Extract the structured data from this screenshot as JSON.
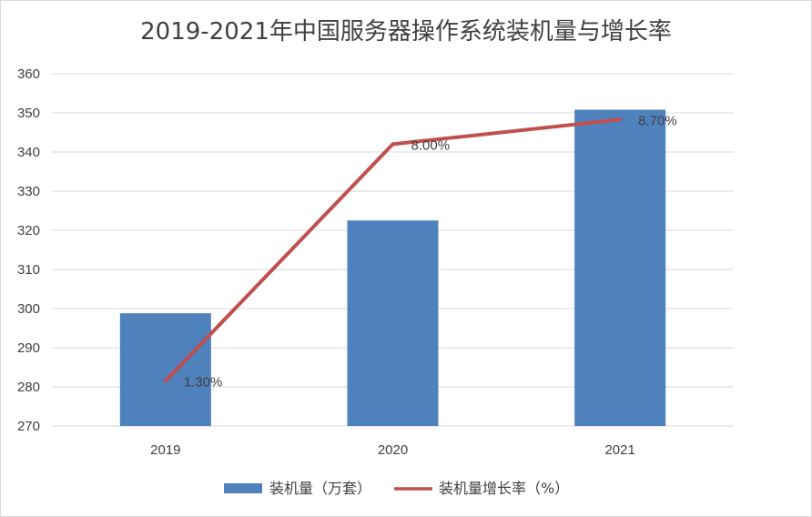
{
  "chart_data": {
    "type": "bar",
    "title": "2019-2021年中国服务器操作系统装机量与增长率",
    "categories": [
      "2019",
      "2020",
      "2021"
    ],
    "ylim": [
      270,
      360
    ],
    "yticks": [
      270,
      280,
      290,
      300,
      310,
      320,
      330,
      340,
      350,
      360
    ],
    "grid": true,
    "legend_position": "bottom",
    "series": [
      {
        "name": "装机量（万套）",
        "kind": "bar",
        "color": "#4f81bd",
        "values": [
          298.8,
          322.5,
          350.8
        ]
      },
      {
        "name": "装机量增长率（%）",
        "kind": "line",
        "color": "#c0504d",
        "values": [
          1.3,
          8.0,
          8.7
        ],
        "labels": [
          "1.30%",
          "8.00%",
          "8.70%"
        ],
        "plotted_on_left_axis_at": [
          281.5,
          342.0,
          348.3
        ]
      }
    ]
  }
}
